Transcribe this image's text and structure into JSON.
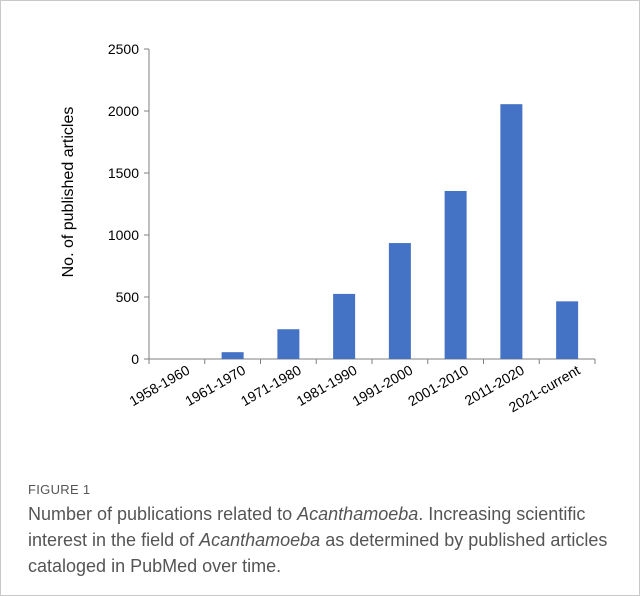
{
  "figure": {
    "label": "FIGURE 1",
    "caption_parts": [
      {
        "text": "Number of publications related to ",
        "italic": false
      },
      {
        "text": "Acanthamoeba",
        "italic": true
      },
      {
        "text": ". Increasing scientific interest in the field of ",
        "italic": false
      },
      {
        "text": "Acanthamoeba",
        "italic": true
      },
      {
        "text": " as determined by published articles cataloged in PubMed over time.",
        "italic": false
      }
    ]
  },
  "chart_data": {
    "type": "bar",
    "title": "",
    "xlabel": "",
    "ylabel": "No. of published articles",
    "categories": [
      "1958-1960",
      "1961-1970",
      "1971-1980",
      "1981-1990",
      "1991-2000",
      "2001-2010",
      "2011-2020",
      "2021-current"
    ],
    "values": [
      0,
      55,
      240,
      525,
      935,
      1355,
      2055,
      465
    ],
    "ylim": [
      0,
      2500
    ],
    "yticks": [
      0,
      500,
      1000,
      1500,
      2000,
      2500
    ],
    "bar_color": "#4472c4",
    "grid": false,
    "legend": "none"
  }
}
